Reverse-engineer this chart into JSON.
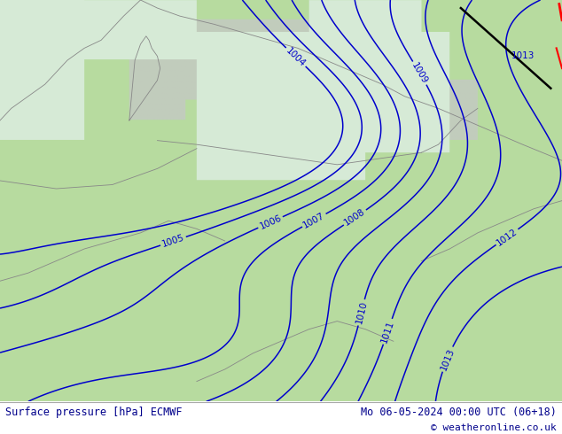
{
  "title_left": "Surface pressure [hPa] ECMWF",
  "title_right": "Mo 06-05-2024 00:00 UTC (06+18)",
  "copyright": "© weatheronline.co.uk",
  "bg_color": "#b8dba0",
  "contour_color": "#0000cc",
  "contour_linewidth": 1.1,
  "label_fontsize": 7.5,
  "label_color": "#0000cc",
  "bottom_text_color": "#00008B",
  "figsize": [
    6.34,
    4.9
  ],
  "dpi": 100,
  "coast_color": "#888888",
  "coast_lw": 0.6,
  "sea_color_rgb": [
    0.82,
    0.91,
    0.82
  ],
  "land_color_rgb": [
    0.72,
    0.86,
    0.63
  ],
  "grey_land_rgb": [
    0.78,
    0.78,
    0.78
  ]
}
